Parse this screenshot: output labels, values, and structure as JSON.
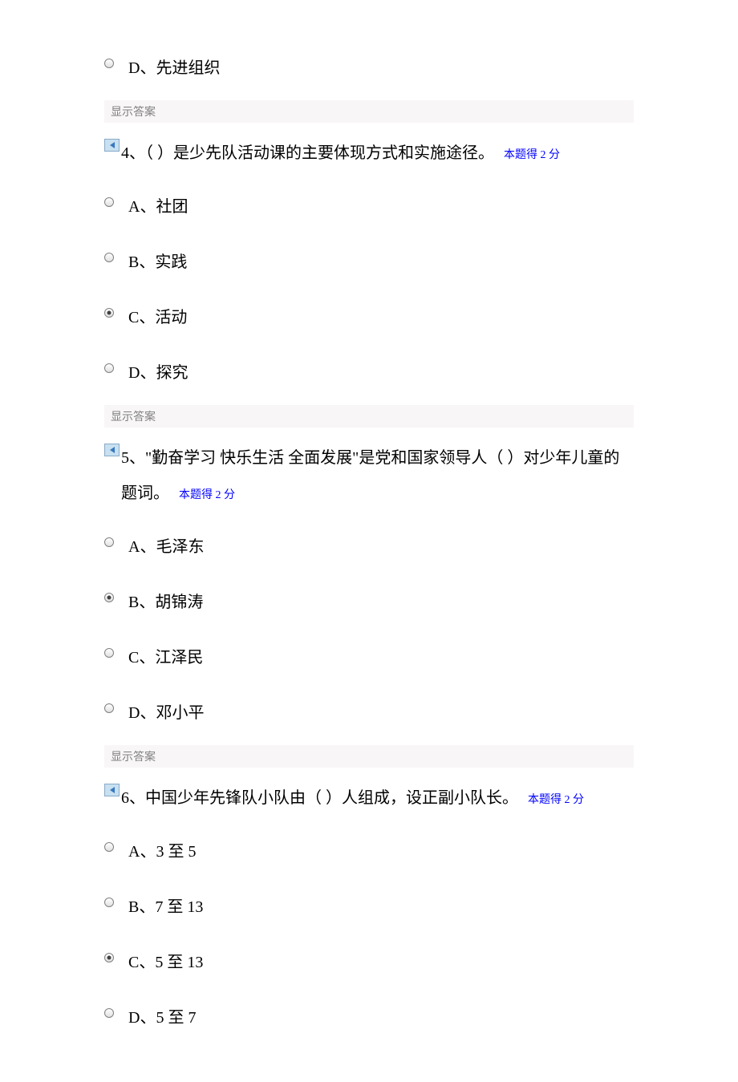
{
  "colors": {
    "background": "#ffffff",
    "text": "#000000",
    "score_text": "#0000ff",
    "answer_bar_bg": "#f8f6f7",
    "answer_bar_text": "#808080",
    "icon_bg": "#c8e0f0",
    "icon_border": "#88aac8",
    "icon_arrow": "#3878c0"
  },
  "typography": {
    "option_fontsize": 20,
    "question_fontsize": 20,
    "score_fontsize": 14,
    "answer_bar_fontsize": 14,
    "font_family": "SimSun"
  },
  "questions": [
    {
      "number": "3",
      "partial": true,
      "trailing_options": [
        {
          "label": "D、先进组织",
          "selected": false
        }
      ],
      "answer_label": "显示答案"
    },
    {
      "number": "4",
      "text": "4、（ ）是少先队活动课的主要体现方式和实施途径。",
      "score": "本题得 2 分",
      "options": [
        {
          "label": "A、社团",
          "selected": false
        },
        {
          "label": "B、实践",
          "selected": false
        },
        {
          "label": "C、活动",
          "selected": true
        },
        {
          "label": "D、探究",
          "selected": false
        }
      ],
      "answer_label": "显示答案"
    },
    {
      "number": "5",
      "text": "5、\"勤奋学习 快乐生活 全面发展\"是党和国家领导人（ ）对少年儿童的题词。",
      "score": "本题得 2 分",
      "options": [
        {
          "label": "A、毛泽东",
          "selected": false
        },
        {
          "label": "B、胡锦涛",
          "selected": true
        },
        {
          "label": "C、江泽民",
          "selected": false
        },
        {
          "label": "D、邓小平",
          "selected": false
        }
      ],
      "answer_label": "显示答案"
    },
    {
      "number": "6",
      "text": "6、中国少年先锋队小队由（ ）人组成，设正副小队长。",
      "score": "本题得 2 分",
      "options": [
        {
          "label": "A、3 至 5",
          "selected": false
        },
        {
          "label": "B、7 至 13",
          "selected": false
        },
        {
          "label": "C、5 至 13",
          "selected": true
        },
        {
          "label": "D、5 至 7",
          "selected": false
        }
      ]
    }
  ]
}
